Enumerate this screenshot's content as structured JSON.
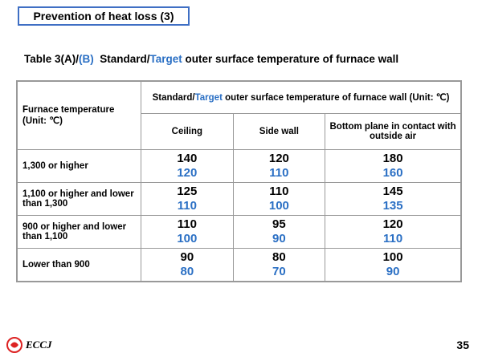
{
  "header": {
    "title": "Prevention of heat loss (3)"
  },
  "caption": {
    "parts": [
      "Table 3(A)/",
      "(B)",
      "  Standard/",
      "Target",
      " outer surface temperature of furnace wall"
    ]
  },
  "table": {
    "row_header": "Furnace temperature (Unit: ℃)",
    "group_header": {
      "parts": [
        "Standard/",
        "Target",
        " outer surface temperature of furnace wall (Unit: ℃)"
      ]
    },
    "columns": [
      "Ceiling",
      "Side wall",
      "Bottom plane in contact with outside air"
    ],
    "rows": [
      {
        "label": "1,300 or higher",
        "standard": [
          140,
          120,
          180
        ],
        "target": [
          120,
          110,
          160
        ]
      },
      {
        "label": "1,100 or higher and lower than 1,300",
        "standard": [
          125,
          110,
          145
        ],
        "target": [
          110,
          100,
          135
        ]
      },
      {
        "label": "900 or higher and lower than 1,100",
        "standard": [
          110,
          95,
          120
        ],
        "target": [
          100,
          90,
          110
        ]
      },
      {
        "label": "Lower than 900",
        "standard": [
          90,
          80,
          100
        ],
        "target": [
          80,
          70,
          90
        ]
      }
    ]
  },
  "footer": {
    "logo": "ECCJ",
    "page": 35
  }
}
